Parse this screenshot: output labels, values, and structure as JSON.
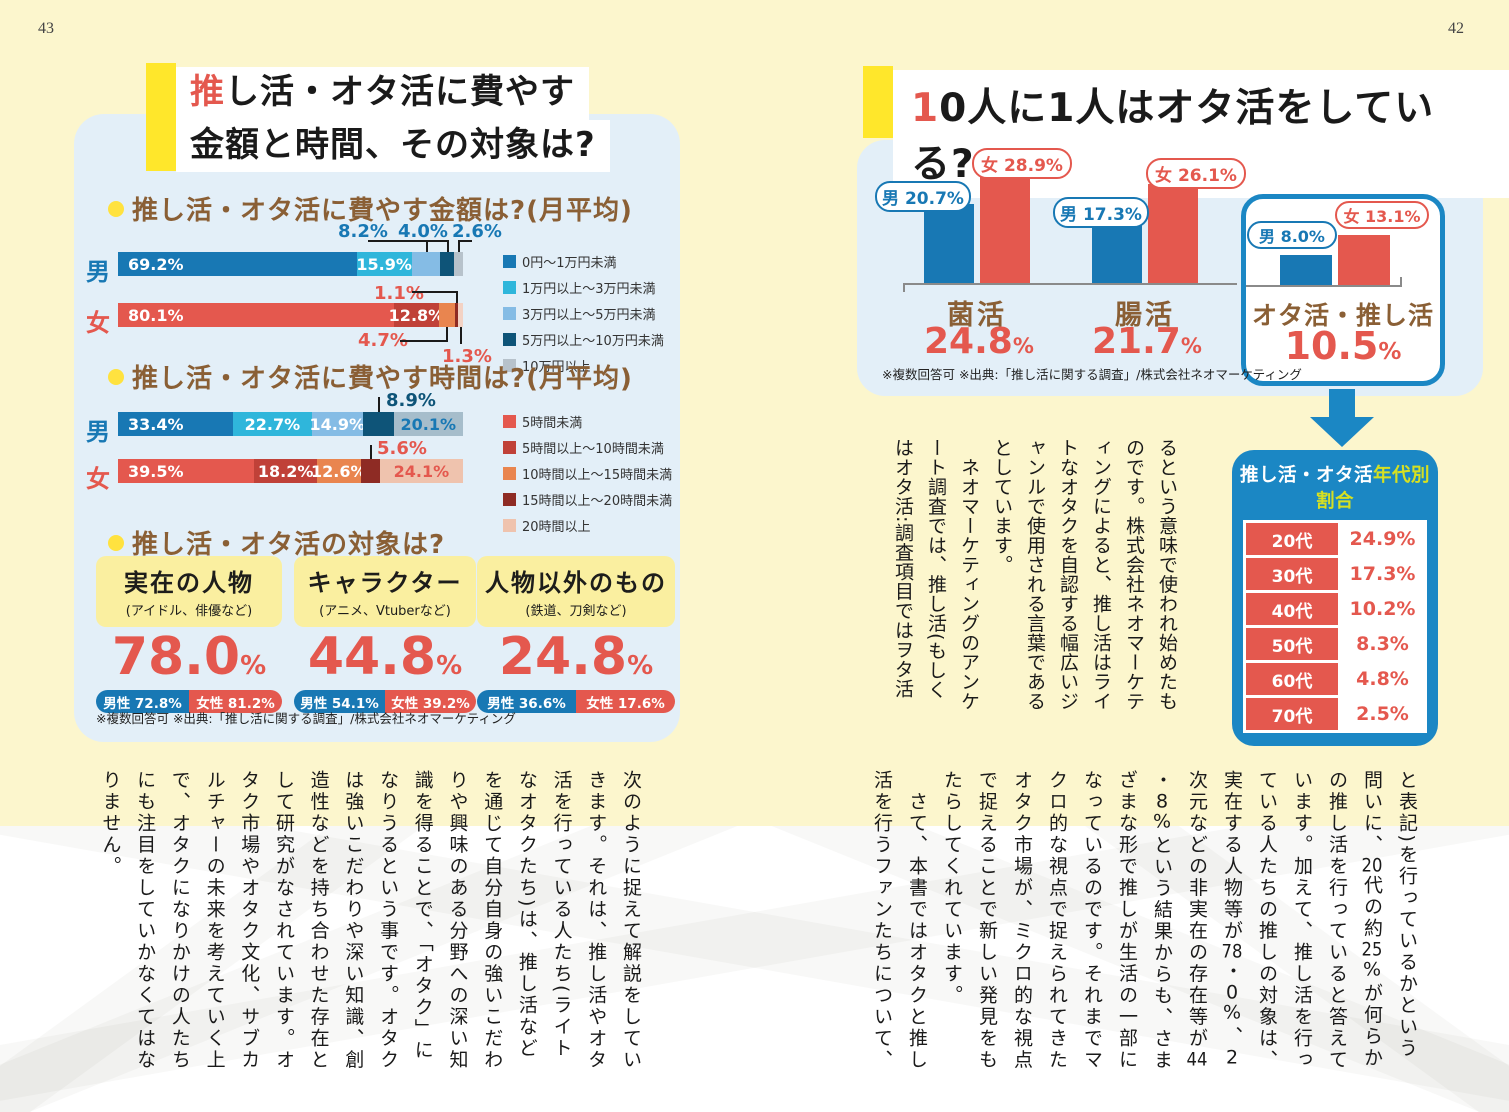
{
  "colors": {
    "page_bg": "#FCF6CD",
    "panel_blue": "#E3EFF8",
    "highlight_yellow": "#FFE72B",
    "card_yellow": "#FAEFA0",
    "accent_red": "#E4584E",
    "accent_blue": "#1878B4",
    "brown": "#8A5F35",
    "table_blue": "#1B87C4",
    "table_header_accent": "#D6E021"
  },
  "page_left": {
    "page_number": "43",
    "title_line1_accent": "推",
    "title_line1": "し活・オタ活に費やす",
    "title_line2": "金額と時間、その対象は?",
    "source": "※複数回答可 ※出典:「推し活に関する調査」/株式会社ネオマーケティング",
    "money_chart": {
      "type": "stacked-bar",
      "heading": "推し活・オタ活に費やす金額は?(月平均)",
      "legend": [
        {
          "label": "0円〜1万円未満",
          "color": "#1878B4"
        },
        {
          "label": "1万円以上〜3万円未満",
          "color": "#2FB6DB"
        },
        {
          "label": "3万円以上〜5万円未満",
          "color": "#85BCE5"
        },
        {
          "label": "5万円以上〜10万円未満",
          "color": "#0E5478"
        },
        {
          "label": "10万円以上",
          "color": "#B7C2CB"
        }
      ],
      "rows": [
        {
          "label": "男",
          "segments": [
            {
              "pct": 69.2,
              "color": "#1878B4",
              "text": "69.2%"
            },
            {
              "pct": 15.9,
              "color": "#2FB6DB",
              "text": "15.9%"
            },
            {
              "pct": 8.2,
              "color": "#85BCE5"
            },
            {
              "pct": 4.0,
              "color": "#0E5478"
            },
            {
              "pct": 2.6,
              "color": "#B7C2CB"
            }
          ]
        },
        {
          "label": "女",
          "segments": [
            {
              "pct": 80.1,
              "color": "#E4584E",
              "text": "80.1%"
            },
            {
              "pct": 12.8,
              "color": "#C04138",
              "text": "12.8%"
            },
            {
              "pct": 4.7,
              "color": "#E9854F"
            },
            {
              "pct": 1.1,
              "color": "#8E2B24"
            },
            {
              "pct": 1.3,
              "color": "#F3D2C4"
            }
          ]
        }
      ],
      "callouts": [
        {
          "text": "8.2%"
        },
        {
          "text": "4.0%"
        },
        {
          "text": "2.6%"
        },
        {
          "text": "1.1%"
        },
        {
          "text": "4.7%"
        },
        {
          "text": "1.3%"
        }
      ]
    },
    "time_chart": {
      "type": "stacked-bar",
      "heading": "推し活・オタ活に費やす時間は?(月平均)",
      "legend": [
        {
          "label": "5時間未満",
          "color": "#E4584E"
        },
        {
          "label": "5時間以上〜10時間未満",
          "color": "#C04138"
        },
        {
          "label": "10時間以上〜15時間未満",
          "color": "#E9854F"
        },
        {
          "label": "15時間以上〜20時間未満",
          "color": "#8E2B24"
        },
        {
          "label": "20時間以上",
          "color": "#EFC3AE"
        }
      ],
      "rows": [
        {
          "label": "男",
          "segments": [
            {
              "pct": 33.4,
              "color": "#1878B4",
              "text": "33.4%"
            },
            {
              "pct": 22.7,
              "color": "#2FB6DB",
              "text": "22.7%"
            },
            {
              "pct": 14.9,
              "color": "#85BCE5",
              "text": "14.9%"
            },
            {
              "pct": 8.9,
              "color": "#0E5478"
            },
            {
              "pct": 20.1,
              "color": "#A6BDCB",
              "text": "20.1%",
              "text_color": "#1878B4"
            }
          ]
        },
        {
          "label": "女",
          "segments": [
            {
              "pct": 39.5,
              "color": "#E4584E",
              "text": "39.5%"
            },
            {
              "pct": 18.2,
              "color": "#C04138",
              "text": "18.2%"
            },
            {
              "pct": 12.6,
              "color": "#E9854F",
              "text": "12.6%"
            },
            {
              "pct": 5.6,
              "color": "#8E2B24"
            },
            {
              "pct": 24.1,
              "color": "#EFC3AE",
              "text": "24.1%",
              "text_color": "#E4584E"
            }
          ]
        }
      ],
      "callouts": [
        {
          "text": "8.9%"
        },
        {
          "text": "5.6%"
        }
      ]
    },
    "target_section": {
      "heading": "推し活・オタ活の対象は?",
      "unit": "%",
      "cards": [
        {
          "title": "実在の人物",
          "subtitle": "(アイドル、俳優など)",
          "value": "78.0",
          "male": "男性 72.8%",
          "female": "女性 81.2%"
        },
        {
          "title": "キャラクター",
          "subtitle": "(アニメ、Vtuberなど)",
          "value": "44.8",
          "male": "男性 54.1%",
          "female": "女性 39.2%"
        },
        {
          "title": "人物以外のもの",
          "subtitle": "(鉄道、刀剣など)",
          "value": "24.8",
          "male": "男性 36.6%",
          "female": "女性 17.6%"
        }
      ]
    },
    "body_text": "次のように捉えて解説をしていきます。それは、推し活やオタ活を行っている人たち(ライトなオタクたち)は、推し活などを通じて自分自身の強いこだわりや興味のある分野への深い知識を得ることで、「オタク」になりうるという事です。オタクは強いこだわりや深い知識、創造性などを持ち合わせた存在として研究がなされています。オタク市場やオタク文化、サブカルチャーの未来を考えていく上で、オタクになりかけの人たちにも注目をしていかなくてはなりません。"
  },
  "page_right": {
    "page_number": "42",
    "title_accent": "1",
    "title": "0人に1人はオタ活をしている?",
    "source": "※複数回答可 ※出典:「推し活に関する調査」/株式会社ネオマーケティング",
    "comparison_chart": {
      "type": "bar",
      "unit": "%",
      "groups": [
        {
          "name": "菌活",
          "total": "24.8",
          "male_pill": "男 20.7%",
          "female_pill": "女 28.9%",
          "male_pct": 20.7,
          "female_pct": 28.9
        },
        {
          "name": "腸活",
          "total": "21.7",
          "male_pill": "男 17.3%",
          "female_pill": "女 26.1%",
          "male_pct": 17.3,
          "female_pct": 26.1
        },
        {
          "name": "オタ活・推し活",
          "total": "10.5",
          "male_pill": "男 8.0%",
          "female_pill": "女 13.1%",
          "male_pct": 8.0,
          "female_pct": 13.1
        }
      ]
    },
    "age_table": {
      "title_white": "推し活・オタ活",
      "title_accent": "年代別割合",
      "rows": [
        {
          "age": "20代",
          "value": "24.9%"
        },
        {
          "age": "30代",
          "value": "17.3%"
        },
        {
          "age": "40代",
          "value": "10.2%"
        },
        {
          "age": "50代",
          "value": "8.3%"
        },
        {
          "age": "60代",
          "value": "4.8%"
        },
        {
          "age": "70代",
          "value": "2.5%"
        }
      ]
    },
    "mid_text": "るという意味で使われ始めたものです。株式会社ネオマーケティングによると、推し活はライトなオタクを自認する幅広いジャンルで使用される言葉であるとしています。\n　ネオマーケティングのアンケート調査では、推し活(もしくはオタ活:調査項目ではヲタ活",
    "body_text": "と表記)を行っているかという問いに、20代の約25%が何らかの推し活を行っていると答えています。加えて、推し活を行っている人たちの推しの対象は、実在する人物等が78・0%、2次元などの非実在の存在等が44・8%という結果からも、さまざまな形で推しが生活の一部になっているのです。それまでマクロ的な視点で捉えられてきたオタク市場が、ミクロ的な視点で捉えることで新しい発見をもたらしてくれています。\n　さて、本書ではオタクと推し活を行うファンたちについて、"
  }
}
